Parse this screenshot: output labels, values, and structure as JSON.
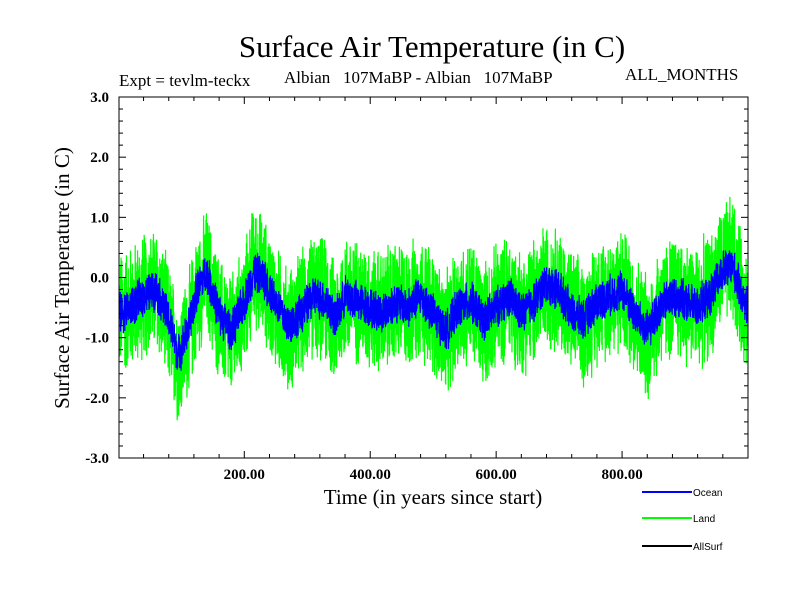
{
  "chart_data": {
    "type": "line",
    "title": "Surface Air Temperature (in C)",
    "subtitle_left": "Expt = tevlm-teckx",
    "subtitle_center": "Albian   107MaBP - Albian   107MaBP",
    "subtitle_right": "ALL_MONTHS",
    "xlabel": "Time (in years since start)",
    "ylabel": "Surface Air Temperature (in C)",
    "xlim": [
      1,
      1000
    ],
    "ylim": [
      -3.0,
      3.0
    ],
    "x_ticks": [
      200,
      400,
      600,
      800
    ],
    "x_tick_labels": [
      "200.00",
      "400.00",
      "600.00",
      "800.00"
    ],
    "y_ticks": [
      -3,
      -2,
      -1,
      0,
      1,
      2,
      3
    ],
    "y_tick_labels": [
      "-3.0",
      "-2.0",
      "-1.0",
      "0.0",
      "1.0",
      "2.0",
      "3.0"
    ],
    "legend_position": "bottom-right",
    "x_anchor_years": [
      1,
      20,
      40,
      60,
      80,
      95,
      110,
      125,
      140,
      160,
      180,
      200,
      215,
      230,
      250,
      270,
      290,
      310,
      330,
      345,
      360,
      380,
      400,
      420,
      440,
      460,
      480,
      500,
      520,
      540,
      560,
      580,
      600,
      620,
      640,
      660,
      680,
      700,
      720,
      740,
      760,
      780,
      800,
      820,
      840,
      860,
      880,
      900,
      920,
      940,
      960,
      975,
      990,
      1000
    ],
    "series": [
      {
        "name": "Ocean",
        "color": "#0000ff",
        "noise_amplitude": 0.38,
        "values": [
          -0.6,
          -0.5,
          -0.3,
          -0.2,
          -0.7,
          -1.3,
          -0.9,
          -0.2,
          0.1,
          -0.6,
          -0.9,
          -0.4,
          0.1,
          0.0,
          -0.4,
          -0.8,
          -0.6,
          -0.3,
          -0.4,
          -0.7,
          -0.3,
          -0.4,
          -0.5,
          -0.6,
          -0.4,
          -0.5,
          -0.3,
          -0.6,
          -0.9,
          -0.5,
          -0.4,
          -0.7,
          -0.5,
          -0.3,
          -0.6,
          -0.4,
          -0.1,
          -0.2,
          -0.6,
          -0.7,
          -0.4,
          -0.3,
          -0.2,
          -0.6,
          -0.9,
          -0.5,
          -0.3,
          -0.4,
          -0.5,
          -0.3,
          0.1,
          0.2,
          -0.3,
          -0.5
        ]
      },
      {
        "name": "Land",
        "color": "#00ff00",
        "noise_amplitude": 1.15,
        "values": [
          -0.6,
          -0.5,
          -0.3,
          -0.2,
          -0.8,
          -1.4,
          -1.0,
          -0.3,
          0.1,
          -0.7,
          -1.0,
          -0.5,
          0.2,
          0.0,
          -0.5,
          -0.9,
          -0.6,
          -0.3,
          -0.4,
          -0.8,
          -0.3,
          -0.4,
          -0.5,
          -0.6,
          -0.4,
          -0.5,
          -0.3,
          -0.6,
          -1.0,
          -0.5,
          -0.4,
          -0.8,
          -0.5,
          -0.3,
          -0.6,
          -0.4,
          -0.1,
          -0.2,
          -0.6,
          -0.8,
          -0.4,
          -0.3,
          -0.2,
          -0.6,
          -1.0,
          -0.5,
          -0.3,
          -0.4,
          -0.5,
          -0.3,
          0.2,
          0.3,
          -0.3,
          -0.5
        ]
      },
      {
        "name": "AllSurf",
        "color": "#000000",
        "noise_amplitude": 0.0,
        "values": []
      }
    ]
  }
}
